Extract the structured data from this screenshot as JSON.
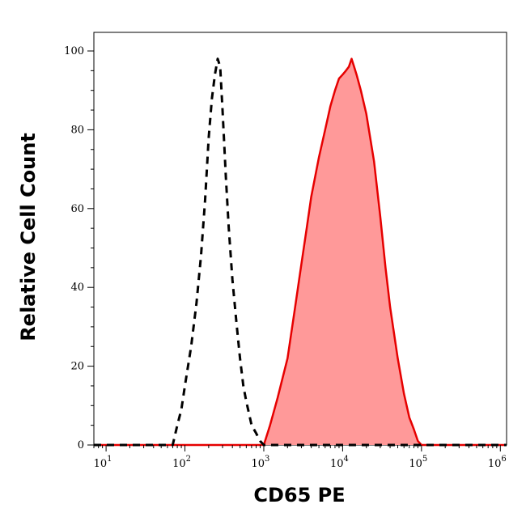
{
  "chart_data": {
    "type": "area",
    "title": "",
    "xlabel": "CD65 PE",
    "ylabel": "Relative Cell Count",
    "x_scale": "log",
    "xlim": [
      7,
      1200000
    ],
    "ylim": [
      0,
      100
    ],
    "grid": false,
    "legend": "none",
    "x_ticks": [
      {
        "value": 10,
        "base": "10",
        "exp": "1"
      },
      {
        "value": 100,
        "base": "10",
        "exp": "2"
      },
      {
        "value": 1000,
        "base": "10",
        "exp": "3"
      },
      {
        "value": 10000,
        "base": "10",
        "exp": "4"
      },
      {
        "value": 100000,
        "base": "10",
        "exp": "5"
      },
      {
        "value": 1000000,
        "base": "10",
        "exp": "6"
      }
    ],
    "y_ticks": [
      {
        "value": 0,
        "label": "0"
      },
      {
        "value": 20,
        "label": "20"
      },
      {
        "value": 40,
        "label": "40"
      },
      {
        "value": 60,
        "label": "60"
      },
      {
        "value": 80,
        "label": "80"
      },
      {
        "value": 100,
        "label": "100"
      }
    ],
    "series": [
      {
        "style": "dashed",
        "color": "#000000",
        "x": [
          7,
          70,
          80,
          90,
          100,
          120,
          140,
          160,
          180,
          200,
          220,
          240,
          260,
          280,
          300,
          330,
          360,
          400,
          450,
          500,
          550,
          600,
          650,
          700,
          800,
          900,
          1000,
          1200000
        ],
        "y": [
          0,
          0,
          5,
          9,
          15,
          25,
          36,
          48,
          62,
          78,
          88,
          94,
          98,
          96,
          85,
          68,
          55,
          42,
          31,
          22,
          15,
          11,
          8,
          5,
          3,
          1,
          0,
          0
        ]
      },
      {
        "style": "filled",
        "color": "#e60000",
        "fill": "#ff9999",
        "x": [
          7,
          1000,
          1200,
          1500,
          2000,
          2500,
          3000,
          3500,
          4000,
          5000,
          6000,
          7000,
          8000,
          9000,
          10000,
          11000,
          12000,
          13000,
          14000,
          15000,
          17000,
          20000,
          25000,
          30000,
          35000,
          40000,
          50000,
          60000,
          70000,
          80000,
          90000,
          100000,
          1200000
        ],
        "y": [
          0,
          0,
          5,
          12,
          22,
          35,
          46,
          55,
          63,
          73,
          80,
          86,
          90,
          93,
          94,
          95,
          96,
          98,
          96,
          94,
          90,
          84,
          72,
          58,
          45,
          35,
          22,
          13,
          7,
          4,
          1,
          0,
          0
        ]
      }
    ]
  }
}
